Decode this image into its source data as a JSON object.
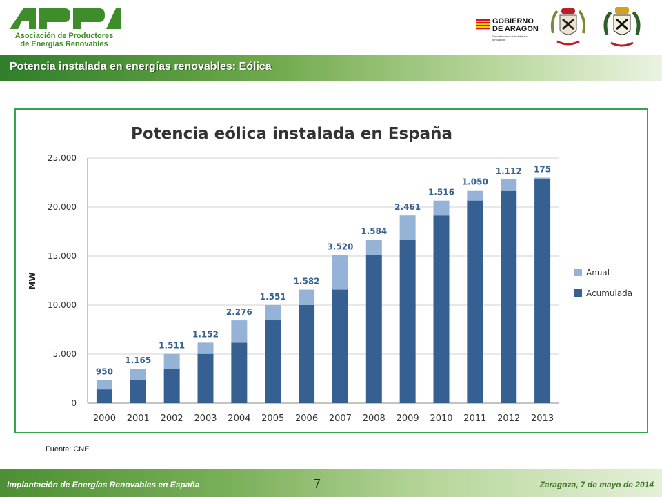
{
  "header": {
    "logo_letters": "APPA",
    "logo_line1": "Asociación de Productores",
    "logo_line2": "de Energías Renovables",
    "gobierno_line1": "GOBIERNO",
    "gobierno_line2": "DE ARAGON",
    "gobierno_sub": "Departamento de Industria e Innovación"
  },
  "slide": {
    "title": "Potencia instalada en energías renovables: Eólica",
    "source": "Fuente: CNE"
  },
  "footer": {
    "left": "Implantación de Energías Renovables en España",
    "page": "7",
    "right": "Zaragoza, 7 de mayo de 2014"
  },
  "colors": {
    "accent_green": "#36a54a",
    "anual": "#95b3d7",
    "acumulada": "#376092",
    "label": "#366092"
  },
  "chart_data": {
    "type": "bar",
    "stacked": true,
    "title": "Potencia eólica instalada en España",
    "ylabel": "MW",
    "xlabel": "",
    "ylim": [
      0,
      25000
    ],
    "yticks": [
      0,
      5000,
      10000,
      15000,
      20000,
      25000
    ],
    "ytick_labels": [
      "0",
      "5.000",
      "10.000",
      "15.000",
      "20.000",
      "25.000"
    ],
    "grid": true,
    "legend_position": "right",
    "categories": [
      "2000",
      "2001",
      "2002",
      "2003",
      "2004",
      "2005",
      "2006",
      "2007",
      "2008",
      "2009",
      "2010",
      "2011",
      "2012",
      "2013"
    ],
    "series": [
      {
        "name": "Acumulada",
        "values": [
          1400,
          2350,
          3510,
          5020,
          6170,
          8450,
          10000,
          11580,
          15100,
          16680,
          19140,
          20660,
          21710,
          22820
        ]
      },
      {
        "name": "Anual",
        "values": [
          950,
          1165,
          1511,
          1152,
          2276,
          1551,
          1582,
          3520,
          1584,
          2461,
          1516,
          1050,
          1112,
          175
        ]
      }
    ],
    "data_labels": [
      "950",
      "1.165",
      "1.511",
      "1.152",
      "2.276",
      "1.551",
      "1.582",
      "3.520",
      "1.584",
      "2.461",
      "1.516",
      "1.050",
      "1.112",
      "175"
    ],
    "legend_order": [
      "Anual",
      "Acumulada"
    ]
  }
}
